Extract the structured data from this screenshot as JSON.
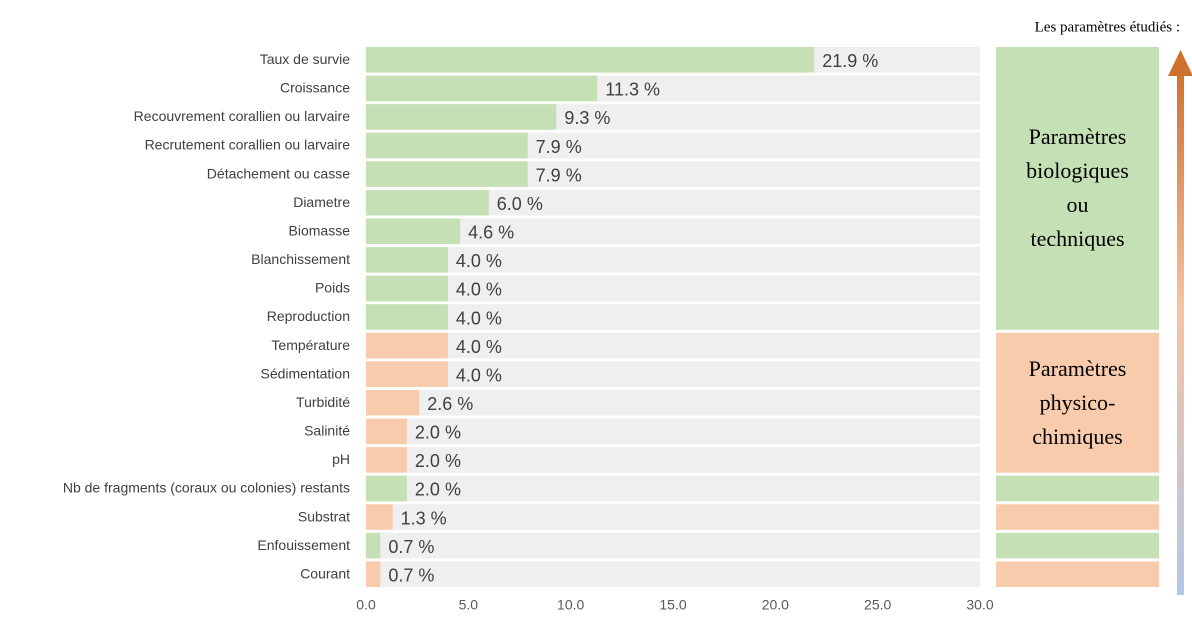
{
  "chart_data": {
    "type": "bar",
    "orientation": "horizontal",
    "legend_title": "Les paramètres étudiés :",
    "categories": [
      "Taux de survie",
      "Croissance",
      "Recouvrement corallien ou larvaire",
      "Recrutement corallien ou larvaire",
      "Détachement ou casse",
      "Diametre",
      "Biomasse",
      "Blanchissement",
      "Poids",
      "Reproduction",
      "Température",
      "Sédimentation",
      "Turbidité",
      "Salinité",
      "pH",
      "Nb de fragments (coraux ou colonies) restants",
      "Substrat",
      "Enfouissement",
      "Courant"
    ],
    "values": [
      21.9,
      11.3,
      9.3,
      7.9,
      7.9,
      6.0,
      4.6,
      4.0,
      4.0,
      4.0,
      4.0,
      4.0,
      2.6,
      2.0,
      2.0,
      2.0,
      1.3,
      0.7,
      0.7
    ],
    "value_labels": [
      "21.9 %",
      "11.3 %",
      "9.3 %",
      "7.9 %",
      "7.9 %",
      "6.0 %",
      "4.6 %",
      "4.0 %",
      "4.0 %",
      "4.0 %",
      "4.0 %",
      "4.0 %",
      "2.6 %",
      "2.0 %",
      "2.0 %",
      "2.0 %",
      "1.3 %",
      "0.7 %",
      "0.7 %"
    ],
    "colors": [
      "#c5e0b4",
      "#c5e0b4",
      "#c5e0b4",
      "#c5e0b4",
      "#c5e0b4",
      "#c5e0b4",
      "#c5e0b4",
      "#c5e0b4",
      "#c5e0b4",
      "#c5e0b4",
      "#f8cbad",
      "#f8cbad",
      "#f8cbad",
      "#f8cbad",
      "#f8cbad",
      "#c5e0b4",
      "#f8cbad",
      "#c5e0b4",
      "#f8cbad"
    ],
    "groups": [
      {
        "label": "Paramètres biologiques ou techniques",
        "color": "#c5e0b4"
      },
      {
        "label": "Paramètres physico-chimiques",
        "color": "#f8cbad"
      }
    ],
    "xlim": [
      0,
      30
    ],
    "xticks": [
      {
        "value": 0,
        "label": "0.0"
      },
      {
        "value": 5,
        "label": "5.0"
      },
      {
        "value": 10,
        "label": "10.0"
      },
      {
        "value": 15,
        "label": "15.0"
      },
      {
        "value": 20,
        "label": "20.0"
      },
      {
        "value": 25,
        "label": "25.0"
      },
      {
        "value": 30,
        "label": "30.0"
      }
    ]
  }
}
